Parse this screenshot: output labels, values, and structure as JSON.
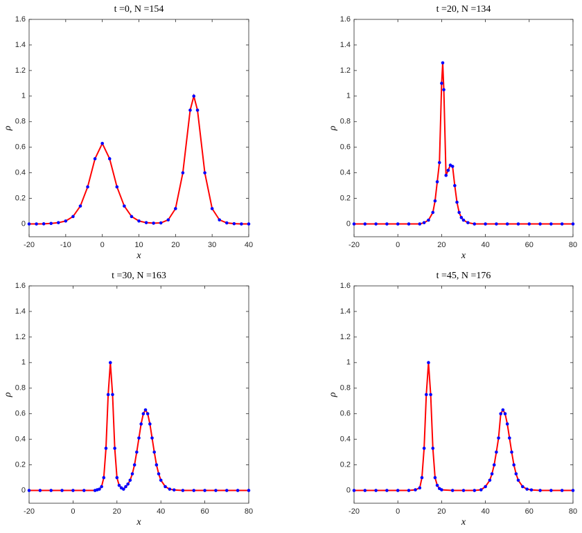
{
  "chart_data": [
    {
      "type": "line",
      "title": "t =0, N =154",
      "x_label": "x",
      "y_label": "ρ",
      "x": [
        -20,
        -18,
        -16,
        -14,
        -12,
        -10,
        -8,
        -6,
        -4,
        -2,
        0,
        2,
        4,
        6,
        8,
        10,
        12,
        14,
        16,
        18,
        20,
        22,
        24,
        25,
        26,
        28,
        30,
        32,
        34,
        36,
        38,
        40
      ],
      "values": [
        0,
        0,
        0.001,
        0.004,
        0.01,
        0.023,
        0.058,
        0.14,
        0.29,
        0.51,
        0.63,
        0.51,
        0.29,
        0.14,
        0.058,
        0.023,
        0.01,
        0.006,
        0.008,
        0.032,
        0.12,
        0.4,
        0.89,
        1.0,
        0.89,
        0.4,
        0.12,
        0.032,
        0.008,
        0.002,
        0,
        0
      ],
      "line_color": "#ff0000",
      "marker_color": "#0000ff",
      "xlim": [
        -20,
        40
      ],
      "ylim": [
        -0.1,
        1.6
      ],
      "xticks": [
        -20,
        -10,
        0,
        10,
        20,
        30,
        40
      ],
      "yticks": [
        0,
        0.2,
        0.4,
        0.6,
        0.8,
        1,
        1.2,
        1.4,
        1.6
      ]
    },
    {
      "type": "line",
      "title": "t =20, N =134",
      "x_label": "x",
      "y_label": "ρ",
      "x": [
        -20,
        -15,
        -10,
        -5,
        0,
        5,
        10,
        12,
        14,
        16,
        17,
        18,
        19,
        20,
        20.5,
        21,
        22,
        23,
        24,
        25,
        26,
        27,
        28,
        29,
        30,
        32,
        35,
        40,
        45,
        50,
        55,
        60,
        65,
        70,
        75,
        80
      ],
      "values": [
        0,
        0,
        0,
        0,
        0,
        0,
        0,
        0.01,
        0.03,
        0.09,
        0.18,
        0.33,
        0.48,
        1.1,
        1.26,
        1.05,
        0.38,
        0.42,
        0.46,
        0.45,
        0.3,
        0.17,
        0.09,
        0.05,
        0.03,
        0.01,
        0,
        0,
        0,
        0,
        0,
        0,
        0,
        0,
        0,
        0
      ],
      "line_color": "#ff0000",
      "marker_color": "#0000ff",
      "xlim": [
        -20,
        80
      ],
      "ylim": [
        -0.1,
        1.6
      ],
      "xticks": [
        -20,
        0,
        20,
        40,
        60,
        80
      ],
      "yticks": [
        0,
        0.2,
        0.4,
        0.6,
        0.8,
        1,
        1.2,
        1.4,
        1.6
      ]
    },
    {
      "type": "line",
      "title": "t =30, N =163",
      "x_label": "x",
      "y_label": "ρ",
      "x": [
        -20,
        -15,
        -10,
        -5,
        0,
        5,
        10,
        11,
        12,
        13,
        14,
        15,
        16,
        17,
        18,
        19,
        20,
        21,
        22,
        23,
        24,
        25,
        26,
        27,
        28,
        29,
        30,
        31,
        32,
        33,
        34,
        35,
        36,
        37,
        38,
        39,
        40,
        42,
        44,
        46,
        50,
        55,
        60,
        65,
        70,
        75,
        80
      ],
      "values": [
        0,
        0,
        0,
        0,
        0,
        0,
        0,
        0.005,
        0.01,
        0.03,
        0.1,
        0.33,
        0.75,
        1.0,
        0.75,
        0.33,
        0.1,
        0.04,
        0.02,
        0.01,
        0.03,
        0.05,
        0.08,
        0.13,
        0.2,
        0.3,
        0.41,
        0.52,
        0.6,
        0.63,
        0.6,
        0.52,
        0.41,
        0.3,
        0.2,
        0.13,
        0.08,
        0.03,
        0.01,
        0.004,
        0,
        0,
        0,
        0,
        0,
        0,
        0
      ],
      "line_color": "#ff0000",
      "marker_color": "#0000ff",
      "xlim": [
        -20,
        80
      ],
      "ylim": [
        -0.1,
        1.6
      ],
      "xticks": [
        -20,
        0,
        20,
        40,
        60,
        80
      ],
      "yticks": [
        0,
        0.2,
        0.4,
        0.6,
        0.8,
        1,
        1.2,
        1.4,
        1.6
      ]
    },
    {
      "type": "line",
      "title": "t =45, N =176",
      "x_label": "x",
      "y_label": "ρ",
      "x": [
        -20,
        -15,
        -10,
        -5,
        0,
        5,
        8,
        10,
        11,
        12,
        13,
        14,
        15,
        16,
        17,
        18,
        19,
        20,
        25,
        30,
        35,
        38,
        40,
        42,
        43,
        44,
        45,
        46,
        47,
        48,
        49,
        50,
        51,
        52,
        53,
        54,
        55,
        57,
        59,
        61,
        65,
        70,
        75,
        80
      ],
      "values": [
        0,
        0,
        0,
        0,
        0,
        0,
        0.005,
        0.02,
        0.1,
        0.33,
        0.75,
        1.0,
        0.75,
        0.33,
        0.1,
        0.04,
        0.015,
        0.005,
        0,
        0,
        0,
        0.005,
        0.03,
        0.08,
        0.13,
        0.2,
        0.3,
        0.41,
        0.6,
        0.63,
        0.6,
        0.52,
        0.41,
        0.3,
        0.2,
        0.13,
        0.08,
        0.03,
        0.01,
        0.004,
        0,
        0,
        0,
        0
      ],
      "line_color": "#ff0000",
      "marker_color": "#0000ff",
      "xlim": [
        -20,
        80
      ],
      "ylim": [
        -0.1,
        1.6
      ],
      "xticks": [
        -20,
        0,
        20,
        40,
        60,
        80
      ],
      "yticks": [
        0,
        0.2,
        0.4,
        0.6,
        0.8,
        1,
        1.2,
        1.4,
        1.6
      ]
    }
  ]
}
